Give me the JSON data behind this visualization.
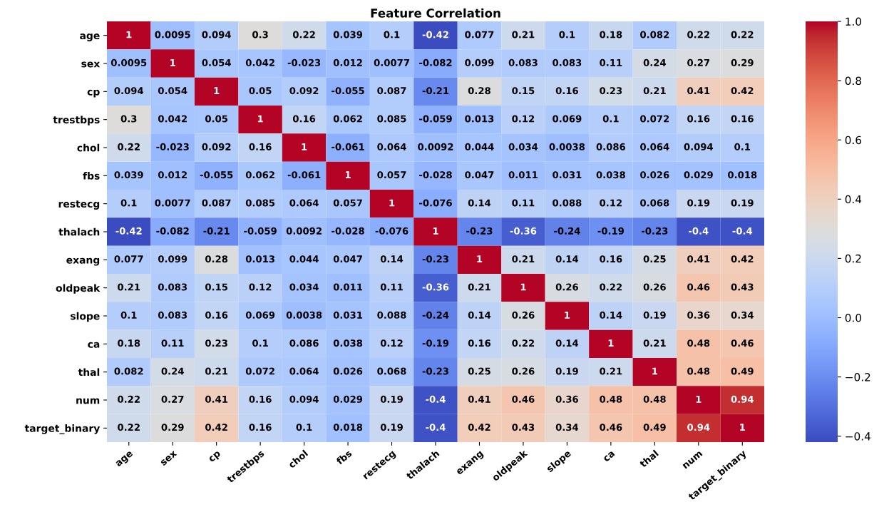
{
  "chart_data": {
    "type": "heatmap",
    "title": "Feature Correlation",
    "categories": [
      "age",
      "sex",
      "cp",
      "trestbps",
      "chol",
      "fbs",
      "restecg",
      "thalach",
      "exang",
      "oldpeak",
      "slope",
      "ca",
      "thal",
      "num",
      "target_binary"
    ],
    "y_categories": [
      "age",
      "sex",
      "cp",
      "trestbps",
      "chol",
      "fbs",
      "restecg",
      "thalach",
      "exang",
      "oldpeak",
      "slope",
      "ca",
      "thal",
      "num",
      "target_binary"
    ],
    "cells": [
      [
        1,
        0.0095,
        0.094,
        0.3,
        0.22,
        0.039,
        0.1,
        -0.42,
        0.077,
        0.21,
        0.1,
        0.18,
        0.082,
        0.22,
        0.22
      ],
      [
        0.0095,
        1,
        0.054,
        0.042,
        -0.023,
        0.012,
        0.0077,
        -0.082,
        0.099,
        0.083,
        0.083,
        0.11,
        0.24,
        0.27,
        0.29
      ],
      [
        0.094,
        0.054,
        1,
        0.05,
        0.092,
        -0.055,
        0.087,
        -0.21,
        0.28,
        0.15,
        0.16,
        0.23,
        0.21,
        0.41,
        0.42
      ],
      [
        0.3,
        0.042,
        0.05,
        1,
        0.16,
        0.062,
        0.085,
        -0.059,
        0.013,
        0.12,
        0.069,
        0.1,
        0.072,
        0.16,
        0.16
      ],
      [
        0.22,
        -0.023,
        0.092,
        0.16,
        1,
        -0.061,
        0.064,
        0.0092,
        0.044,
        0.034,
        0.0038,
        0.086,
        0.064,
        0.094,
        0.1
      ],
      [
        0.039,
        0.012,
        -0.055,
        0.062,
        -0.061,
        1,
        0.057,
        -0.028,
        0.047,
        0.011,
        0.031,
        0.038,
        0.026,
        0.029,
        0.018
      ],
      [
        0.1,
        0.0077,
        0.087,
        0.085,
        0.064,
        0.057,
        1,
        -0.076,
        0.14,
        0.11,
        0.088,
        0.12,
        0.068,
        0.19,
        0.19
      ],
      [
        -0.42,
        -0.082,
        -0.21,
        -0.059,
        0.0092,
        -0.028,
        -0.076,
        1,
        -0.23,
        -0.36,
        -0.24,
        -0.19,
        -0.23,
        -0.4,
        -0.4
      ],
      [
        0.077,
        0.099,
        0.28,
        0.013,
        0.044,
        0.047,
        0.14,
        -0.23,
        1,
        0.21,
        0.14,
        0.16,
        0.25,
        0.41,
        0.42
      ],
      [
        0.21,
        0.083,
        0.15,
        0.12,
        0.034,
        0.011,
        0.11,
        -0.36,
        0.21,
        1,
        0.26,
        0.22,
        0.26,
        0.46,
        0.43
      ],
      [
        0.1,
        0.083,
        0.16,
        0.069,
        0.0038,
        0.031,
        0.088,
        -0.24,
        0.14,
        0.26,
        1,
        0.14,
        0.19,
        0.36,
        0.34
      ],
      [
        0.18,
        0.11,
        0.23,
        0.1,
        0.086,
        0.038,
        0.12,
        -0.19,
        0.16,
        0.22,
        0.14,
        1,
        0.21,
        0.48,
        0.46
      ],
      [
        0.082,
        0.24,
        0.21,
        0.072,
        0.064,
        0.026,
        0.068,
        -0.23,
        0.25,
        0.26,
        0.19,
        0.21,
        1,
        0.48,
        0.49
      ],
      [
        0.22,
        0.27,
        0.41,
        0.16,
        0.094,
        0.029,
        0.19,
        -0.4,
        0.41,
        0.46,
        0.36,
        0.48,
        0.48,
        1,
        0.94
      ],
      [
        0.22,
        0.29,
        0.42,
        0.16,
        0.1,
        0.018,
        0.19,
        -0.4,
        0.42,
        0.43,
        0.34,
        0.46,
        0.49,
        0.94,
        1
      ]
    ],
    "data_labels": true,
    "clim": [
      -0.42,
      1
    ],
    "cticks": [
      {
        "value": -0.4,
        "label": "−0.4"
      },
      {
        "value": -0.2,
        "label": "−0.2"
      },
      {
        "value": 0.0,
        "label": "0.0"
      },
      {
        "value": 0.2,
        "label": "0.2"
      },
      {
        "value": 0.4,
        "label": "0.4"
      },
      {
        "value": 0.6,
        "label": "0.6"
      },
      {
        "value": 0.8,
        "label": "0.8"
      },
      {
        "value": 1.0,
        "label": "1.0"
      }
    ]
  }
}
